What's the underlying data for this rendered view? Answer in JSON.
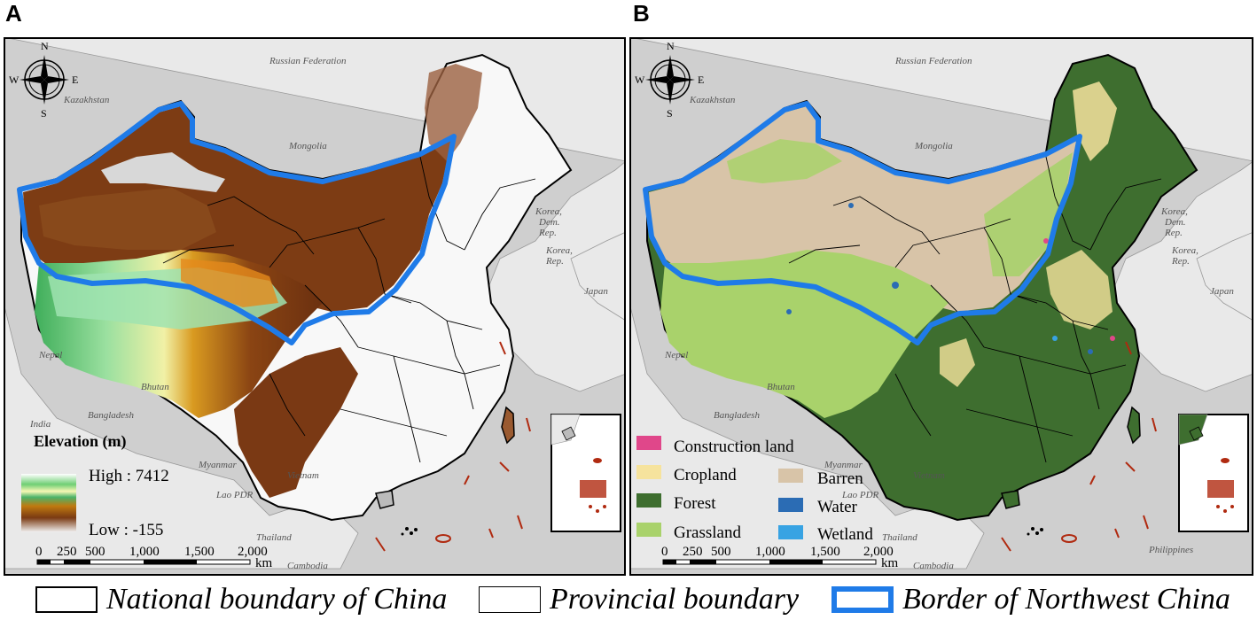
{
  "panels": {
    "a": {
      "letter": "A"
    },
    "b": {
      "letter": "B"
    }
  },
  "compass": {
    "n": "N",
    "s": "S",
    "e": "E",
    "w": "W"
  },
  "countries": {
    "russia": "Russian Federation",
    "kazakhstan": "Kazakhstan",
    "mongolia": "Mongolia",
    "korea_dem": [
      "Korea,",
      "Dem.",
      "Rep."
    ],
    "korea_rep": [
      "Korea,",
      "Rep."
    ],
    "japan": "Japan",
    "nepal": "Nepal",
    "bhutan": "Bhutan",
    "india": "India",
    "bangladesh": "Bangladesh",
    "myanmar": "Myanmar",
    "vietnam": "Vietnam",
    "lao": "Lao PDR",
    "thailand": "Thailand",
    "cambodia": "Cambodia",
    "philippines": "Philippines"
  },
  "elevation_legend": {
    "title": "Elevation (m)",
    "high_label": "High : 7412",
    "low_label": "Low : -155",
    "colors": [
      "#ffffff",
      "#6fcf74",
      "#f7f7b5",
      "#4bb36a",
      "#c07a10",
      "#7a3a12",
      "#f2f2f2"
    ]
  },
  "scale_bar": {
    "ticks": [
      "0",
      "250",
      "500",
      "1,000",
      "1,500",
      "2,000"
    ],
    "unit": "km"
  },
  "landuse_legend": {
    "items": [
      {
        "label": "Construction land",
        "color": "#e0478a"
      },
      {
        "label": "Cropland",
        "color": "#f6e39d"
      },
      {
        "label": "Barren",
        "color": "#d8c4a8"
      },
      {
        "label": "Forest",
        "color": "#3e6e2f"
      },
      {
        "label": "Water",
        "color": "#2b6cb4"
      },
      {
        "label": "Grassland",
        "color": "#a9d26b"
      },
      {
        "label": "Wetland",
        "color": "#38a3e3"
      }
    ]
  },
  "bottom_legend": {
    "national": "National boundary of China",
    "provincial": "Provincial boundary",
    "northwest": "Border of Northwest China"
  },
  "colors": {
    "sea": "#cfcfcf",
    "neighbor_land": "#e9e9e9",
    "northwest_border": "#1f7be8",
    "islands": "#b02a10"
  }
}
